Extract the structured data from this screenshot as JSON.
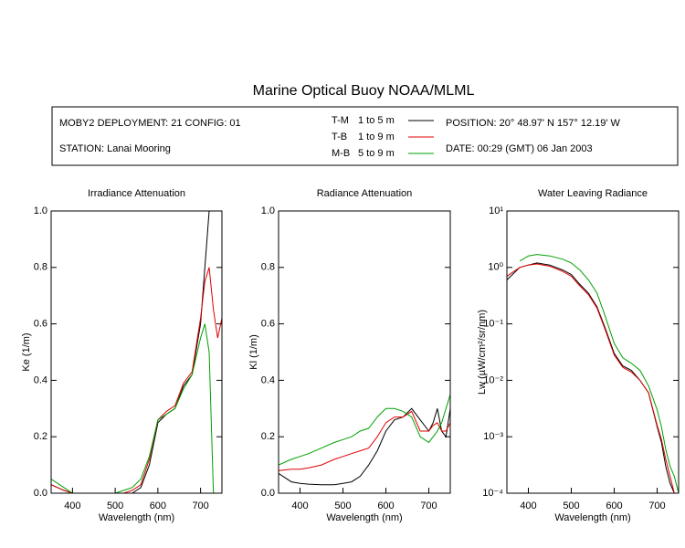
{
  "title": "Marine Optical Buoy NOAA/MLML",
  "info": {
    "deployment": "MOBY2 DEPLOYMENT: 21 CONFIG: 01",
    "station": "STATION: Lanai Mooring",
    "position": "POSITION: 20° 48.97' N   157° 12.19' W",
    "date": "DATE: 00:29 (GMT) 06 Jan 2003"
  },
  "chart_data": [
    {
      "type": "line",
      "title": "Irradiance Attenuation",
      "x_label": "Wavelength (nm)",
      "y_label": "Ke  (1/m)",
      "x": [
        350,
        380,
        400,
        420,
        450,
        480,
        500,
        520,
        540,
        560,
        580,
        600,
        620,
        640,
        660,
        680,
        700,
        710,
        720,
        730,
        740,
        750
      ],
      "xlim": [
        350,
        750
      ],
      "xticks": [
        400,
        500,
        600,
        700
      ],
      "ylim": [
        0,
        1
      ],
      "yticks": [
        {
          "value": 0,
          "label": "0.0"
        },
        0.2,
        0.4,
        0.6,
        0.8,
        {
          "value": 1,
          "label": "1.0"
        }
      ],
      "series": [
        {
          "name": "T-M",
          "depth": "1 to 5  m",
          "color": "#000000",
          "values": [
            0.03,
            0.01,
            0,
            0,
            0,
            0,
            0,
            0,
            0,
            0.02,
            0.1,
            0.25,
            0.28,
            0.3,
            0.38,
            0.42,
            0.6,
            0.8,
            1.0,
            null,
            null,
            null
          ]
        },
        {
          "name": "T-B",
          "depth": "1 to 9  m",
          "color": "#e00000",
          "values": [
            0.03,
            0.01,
            0,
            0,
            0,
            0,
            0,
            0,
            0.01,
            0.03,
            0.12,
            0.26,
            0.29,
            0.31,
            0.39,
            0.43,
            0.62,
            0.75,
            0.8,
            0.65,
            0.55,
            0.62
          ]
        },
        {
          "name": "M-B",
          "depth": "5 to 9  m",
          "color": "#00a000",
          "values": [
            0.05,
            0.02,
            0,
            0,
            0,
            0,
            0,
            0.01,
            0.02,
            0.05,
            0.13,
            0.26,
            0.28,
            0.3,
            0.37,
            0.42,
            0.55,
            0.6,
            0.5,
            0.0,
            null,
            null
          ]
        }
      ]
    },
    {
      "type": "line",
      "title": "Radiance Attenuation",
      "x_label": "Wavelength (nm)",
      "y_label": "Kl  (1/m)",
      "x": [
        350,
        380,
        400,
        420,
        450,
        480,
        500,
        520,
        540,
        560,
        580,
        600,
        620,
        640,
        660,
        680,
        700,
        710,
        720,
        730,
        740,
        750
      ],
      "xlim": [
        350,
        750
      ],
      "xticks": [
        400,
        500,
        600,
        700
      ],
      "ylim": [
        0,
        1
      ],
      "yticks": [
        {
          "value": 0,
          "label": "0.0"
        },
        0.2,
        0.4,
        0.6,
        0.8,
        {
          "value": 1,
          "label": "1.0"
        }
      ],
      "series": [
        {
          "name": "T-M",
          "color": "#000000",
          "values": [
            0.07,
            0.04,
            0.035,
            0.032,
            0.03,
            0.03,
            0.035,
            0.04,
            0.06,
            0.1,
            0.15,
            0.22,
            0.26,
            0.27,
            0.3,
            0.26,
            0.22,
            0.25,
            0.3,
            0.22,
            0.2,
            0.3
          ]
        },
        {
          "name": "T-B",
          "color": "#e00000",
          "values": [
            0.08,
            0.085,
            0.085,
            0.09,
            0.1,
            0.12,
            0.13,
            0.14,
            0.15,
            0.16,
            0.2,
            0.25,
            0.27,
            0.27,
            0.29,
            0.22,
            0.22,
            0.24,
            0.25,
            0.22,
            0.22,
            0.25
          ]
        },
        {
          "name": "M-B",
          "color": "#00a000",
          "values": [
            0.1,
            0.12,
            0.13,
            0.14,
            0.16,
            0.18,
            0.19,
            0.2,
            0.22,
            0.23,
            0.27,
            0.3,
            0.3,
            0.29,
            0.27,
            0.2,
            0.18,
            0.2,
            0.22,
            0.25,
            0.3,
            0.35
          ]
        }
      ]
    },
    {
      "type": "line",
      "title": "Water Leaving Radiance",
      "x_label": "Wavelength (nm)",
      "y_label": "Lw  (µW/cm²/sr/nm)",
      "log_y": true,
      "x": [
        350,
        380,
        400,
        420,
        450,
        480,
        500,
        520,
        540,
        560,
        580,
        600,
        620,
        640,
        660,
        680,
        700,
        710,
        720,
        730,
        740,
        750
      ],
      "xlim": [
        350,
        750
      ],
      "xticks": [
        400,
        500,
        600,
        700
      ],
      "ylim": [
        0.0001,
        10
      ],
      "yticks": [
        {
          "value": 0.0001,
          "label": "10⁻⁴"
        },
        {
          "value": 0.001,
          "label": "10⁻³"
        },
        {
          "value": 0.01,
          "label": "10⁻²"
        },
        {
          "value": 0.1,
          "label": "10⁻¹"
        },
        {
          "value": 1,
          "label": "10⁰"
        },
        {
          "value": 10,
          "label": "10¹"
        }
      ],
      "series": [
        {
          "name": "T-M",
          "color": "#000000",
          "values": [
            0.6,
            1.0,
            1.1,
            1.2,
            1.1,
            0.9,
            0.75,
            0.5,
            0.35,
            0.2,
            0.08,
            0.03,
            0.018,
            0.015,
            0.01,
            0.006,
            0.0015,
            0.0008,
            0.0003,
            0.00015,
            0.0001,
            0.0001
          ]
        },
        {
          "name": "T-B",
          "color": "#e00000",
          "values": [
            0.7,
            1.0,
            1.1,
            1.15,
            1.05,
            0.85,
            0.7,
            0.47,
            0.33,
            0.19,
            0.075,
            0.028,
            0.017,
            0.014,
            0.01,
            0.006,
            0.0016,
            0.0009,
            0.0004,
            0.0002,
            0.0001,
            0.0001
          ]
        },
        {
          "name": "M-B",
          "color": "#00a000",
          "values": [
            null,
            1.3,
            1.6,
            1.7,
            1.6,
            1.4,
            1.2,
            0.9,
            0.6,
            0.35,
            0.13,
            0.045,
            0.025,
            0.02,
            0.015,
            0.008,
            0.003,
            0.0015,
            0.0006,
            0.0003,
            0.0002,
            0.0001
          ]
        }
      ]
    }
  ]
}
